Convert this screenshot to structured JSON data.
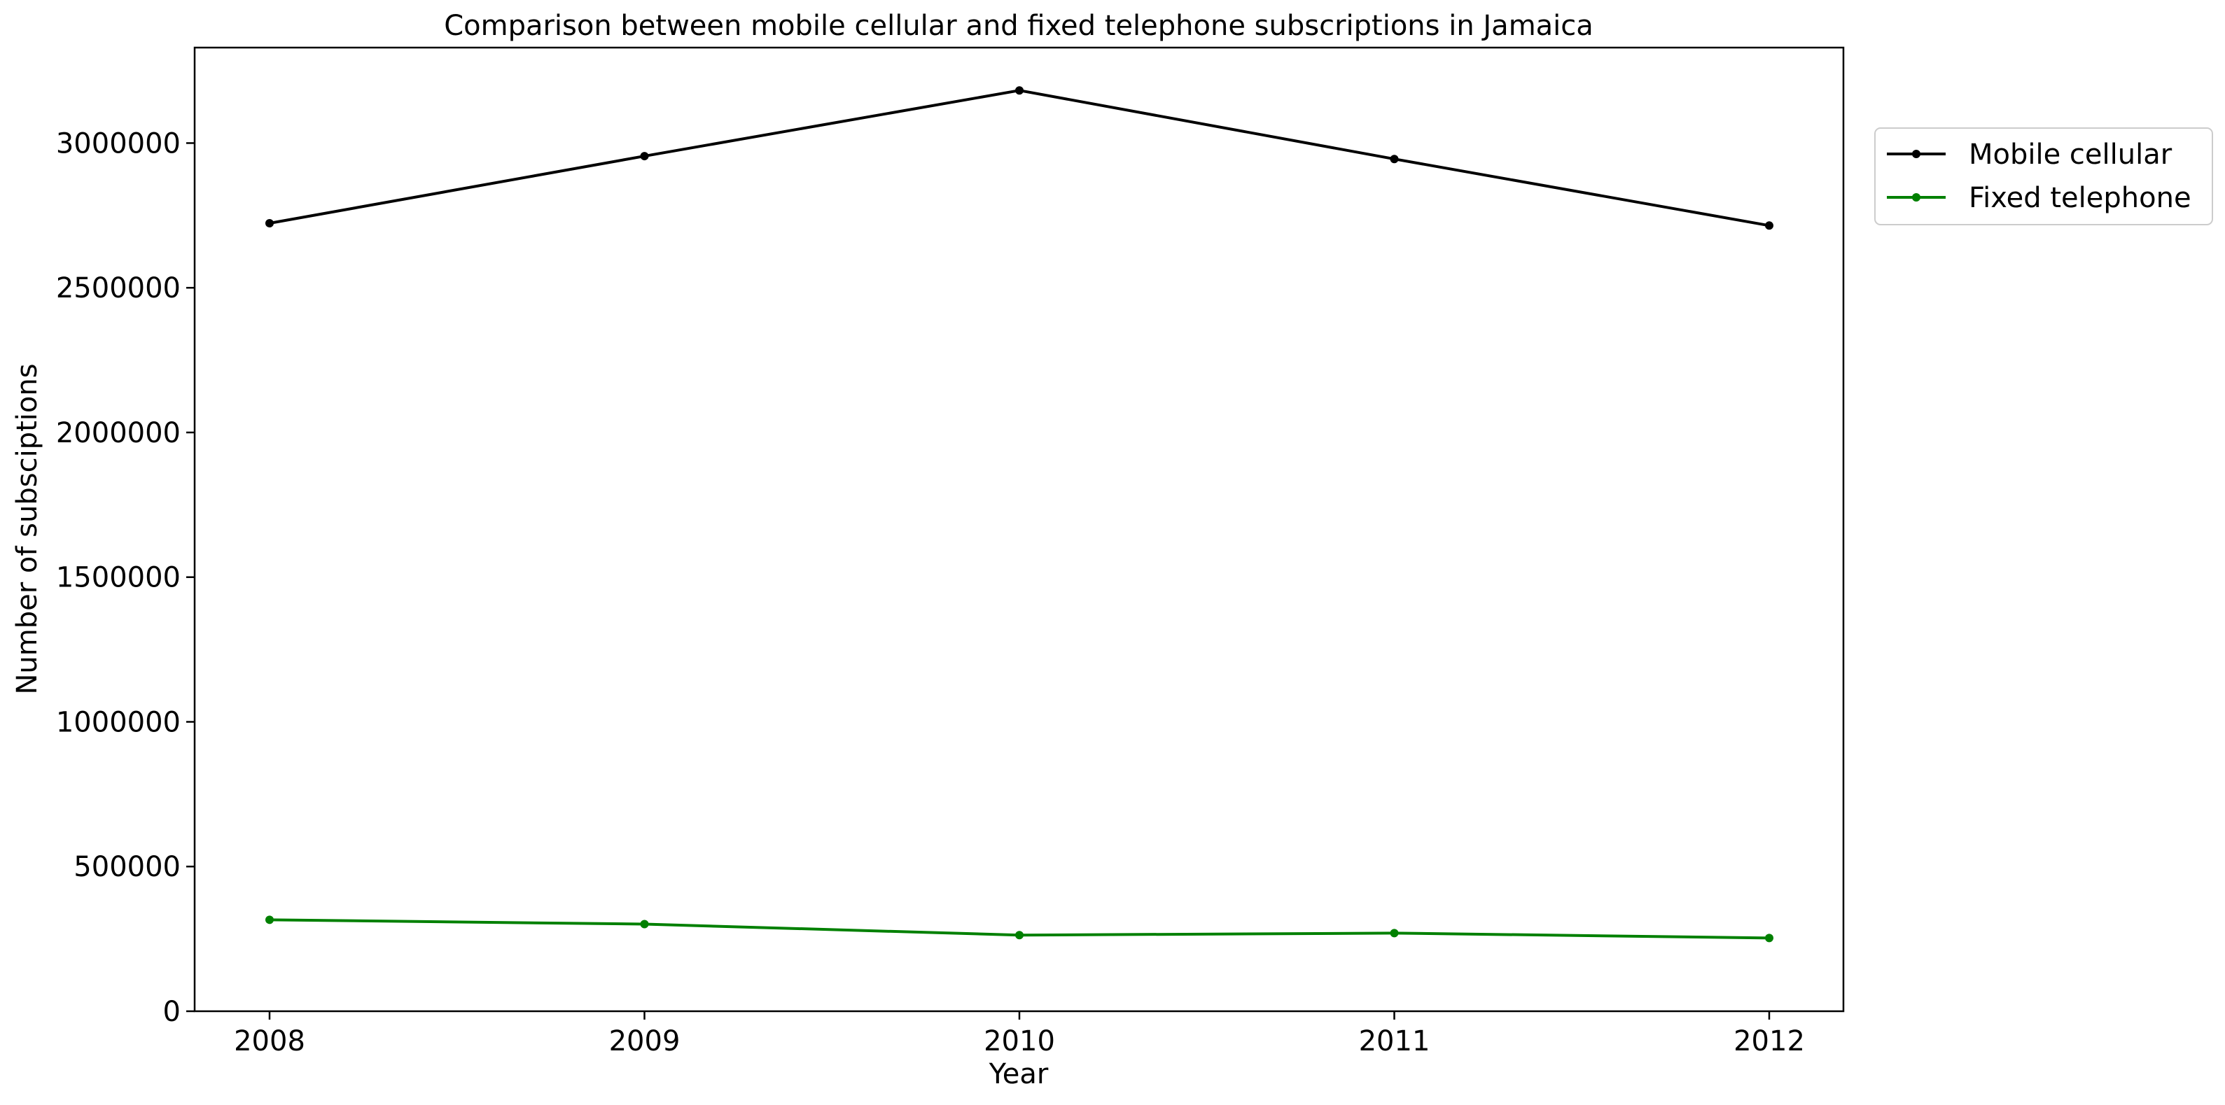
{
  "chart_data": {
    "type": "line",
    "title": "Comparison between mobile cellular and fixed telephone subscriptions in Jamaica",
    "xlabel": "Year",
    "ylabel": "Number of subsciptions",
    "x": [
      "2008",
      "2009",
      "2010",
      "2011",
      "2012"
    ],
    "yticks": [
      "0",
      "500000",
      "1000000",
      "1500000",
      "2000000",
      "2500000",
      "3000000"
    ],
    "ylim": [
      0,
      3330000
    ],
    "grid": false,
    "legend_position": "upper right, outside plot area",
    "series": [
      {
        "name": "Mobile cellular",
        "color": "#000000",
        "values": [
          2723000,
          2955000,
          3182000,
          2945000,
          2715000
        ]
      },
      {
        "name": "Fixed telephone",
        "color": "#008000",
        "values": [
          316000,
          301000,
          263000,
          270000,
          253000
        ]
      }
    ]
  }
}
